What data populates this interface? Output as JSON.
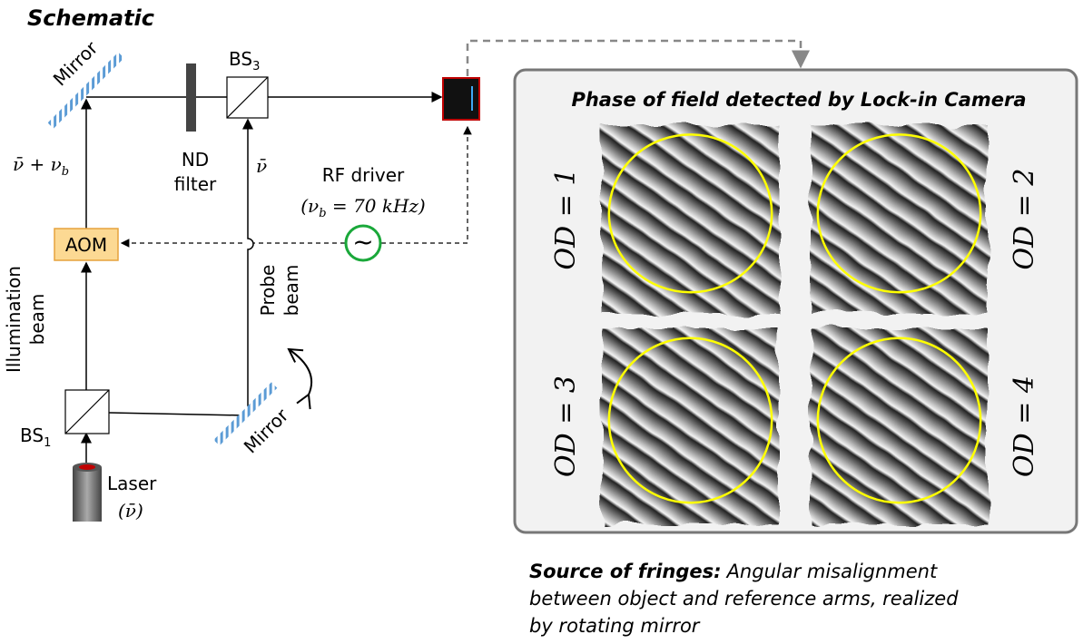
{
  "title": "Schematic",
  "schematic": {
    "mirror_top": "Mirror",
    "bs3": {
      "text": "BS",
      "sub": "3"
    },
    "nd_filter": [
      "ND",
      "filter"
    ],
    "illumination_freq": {
      "text": "ν̄ + ν",
      "sub": "b"
    },
    "probe_freq": "ν̄",
    "rf_driver": {
      "label": "RF driver",
      "freq": {
        "pre": "(ν",
        "sub": "b",
        "post": " = 70 kHz)"
      },
      "symbol": "~"
    },
    "aom": "AOM",
    "illumination_beam": [
      "Illumination",
      "beam"
    ],
    "probe_beam": [
      "Probe",
      "beam"
    ],
    "bs1": {
      "text": "BS",
      "sub": "1"
    },
    "mirror_bottom": "Mirror",
    "laser": [
      "Laser",
      "(ν̄)"
    ]
  },
  "panel": {
    "title": "Phase of field detected by Lock-in Camera",
    "images": [
      {
        "label": "OD = 1"
      },
      {
        "label": "OD = 2"
      },
      {
        "label": "OD = 3"
      },
      {
        "label": "OD = 4"
      }
    ]
  },
  "note": {
    "heading": "Source of fringes:",
    "lines": [
      "Angular misalignment",
      "between object and reference arms, realized",
      "by rotating mirror"
    ]
  }
}
